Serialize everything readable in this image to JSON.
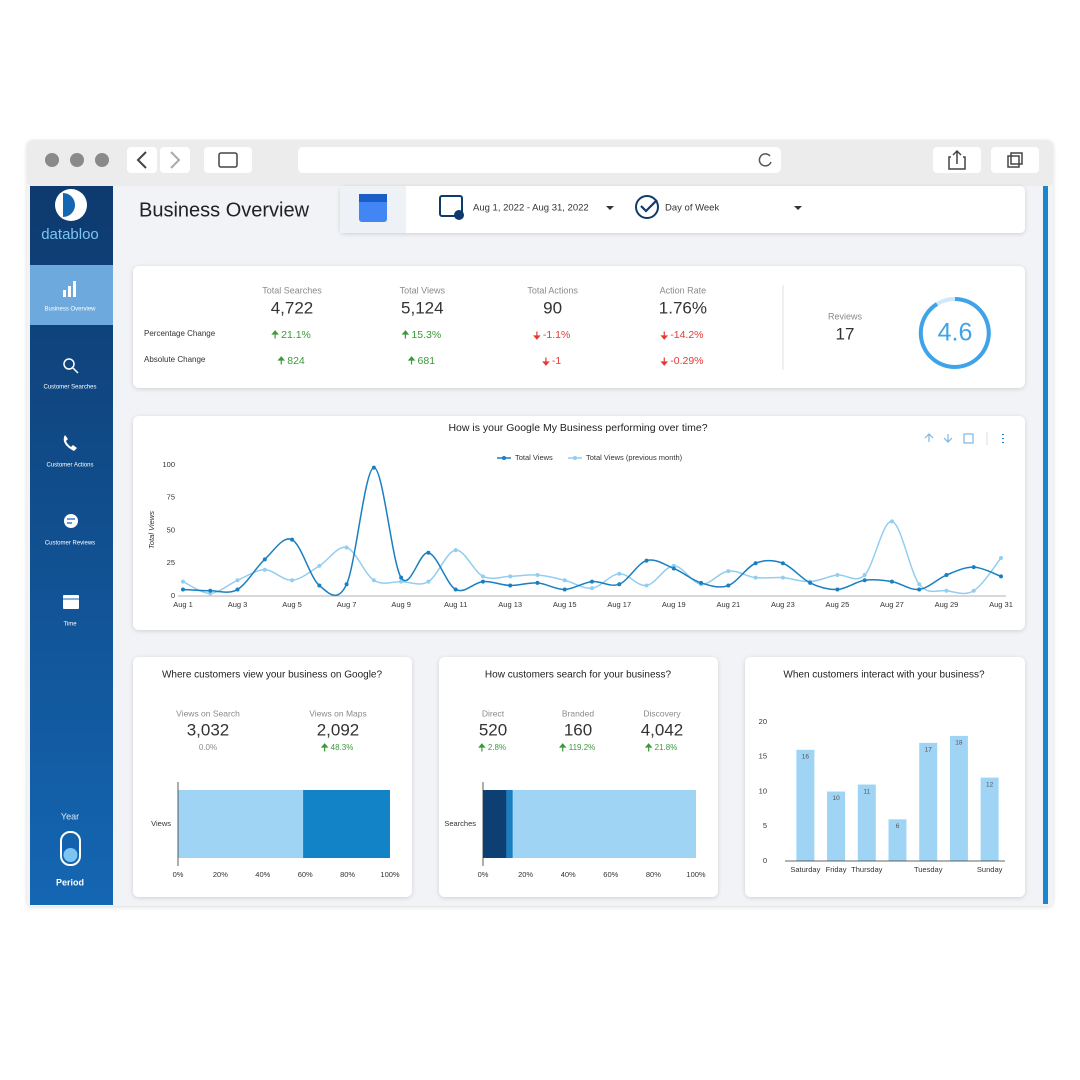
{
  "sidebar": {
    "brand": "databloo",
    "nav": [
      "Business Overview",
      "Customer Searches",
      "Customer Actions",
      "Customer Reviews",
      "Time"
    ],
    "toggle_top": "Year",
    "toggle_bottom": "Period"
  },
  "header": {
    "title": "Business Overview",
    "date_range": "Aug 1, 2022 - Aug 31, 2022",
    "dimension": "Day of Week"
  },
  "kpis": {
    "row_labels": [
      "Percentage Change",
      "Absolute Change"
    ],
    "metrics": [
      {
        "label": "Total Searches",
        "value": "4,722",
        "pct_change": "21.1%",
        "abs_change": "824",
        "direction": "up"
      },
      {
        "label": "Total Views",
        "value": "5,124",
        "pct_change": "15.3%",
        "abs_change": "681",
        "direction": "up"
      },
      {
        "label": "Total Actions",
        "value": "90",
        "pct_change": "-1.1%",
        "abs_change": "-1",
        "direction": "down"
      },
      {
        "label": "Action Rate",
        "value": "1.76%",
        "pct_change": "-14.2%",
        "abs_change": "-0.29%",
        "direction": "down"
      }
    ],
    "reviews_label": "Reviews",
    "reviews_value": "17",
    "rating": "4.6"
  },
  "chart_data": [
    {
      "type": "line",
      "title": "How is your Google My Business performing over time?",
      "ylabel": "Total Views",
      "categories": [
        "Aug 1",
        null,
        "Aug 3",
        null,
        "Aug 5",
        null,
        "Aug 7",
        null,
        "Aug 9",
        null,
        "Aug 11",
        null,
        "Aug 13",
        null,
        "Aug 15",
        null,
        "Aug 17",
        null,
        "Aug 19",
        null,
        "Aug 21",
        null,
        "Aug 23",
        null,
        "Aug 25",
        null,
        "Aug 27",
        null,
        "Aug 29",
        null,
        "Aug 31"
      ],
      "series": [
        {
          "name": "Total Views",
          "color": "#1a7fc1",
          "values": [
            5,
            4,
            5,
            28,
            43,
            8,
            9,
            98,
            14,
            33,
            5,
            11,
            8,
            10,
            5,
            11,
            9,
            27,
            21,
            10,
            8,
            25,
            25,
            10,
            5,
            12,
            11,
            5,
            16,
            22,
            15
          ]
        },
        {
          "name": "Total Views (previous month)",
          "color": "#93cdf0",
          "values": [
            11,
            2,
            12,
            20,
            12,
            23,
            37,
            12,
            11,
            11,
            35,
            15,
            15,
            16,
            12,
            6,
            17,
            8,
            23,
            9,
            19,
            14,
            14,
            11,
            16,
            16,
            57,
            9,
            4,
            4,
            29
          ]
        }
      ],
      "ylim": [
        0,
        100
      ],
      "yticks": [
        0,
        25,
        50,
        75,
        100
      ],
      "grid": false,
      "legend": "top"
    },
    {
      "type": "bar",
      "orientation": "horizontal",
      "stacked": true,
      "title": "Where customers view your business on Google?",
      "kpis": [
        {
          "label": "Views on Search",
          "value": "3,032",
          "change": "0.0%",
          "direction": null
        },
        {
          "label": "Views on Maps",
          "value": "2,092",
          "change": "48.3%",
          "direction": "up"
        }
      ],
      "categories": [
        "Views"
      ],
      "series": [
        {
          "color": "#9fd4f5",
          "values": [
            59
          ]
        },
        {
          "color": "#1283c6",
          "values": [
            41
          ]
        }
      ],
      "xlim": [
        0,
        100
      ],
      "xticks": [
        {
          "value": 0,
          "label": "0%"
        },
        {
          "value": 20,
          "label": "20%"
        },
        {
          "value": 40,
          "label": "40%"
        },
        {
          "value": 60,
          "label": "60%"
        },
        {
          "value": 80,
          "label": "80%"
        },
        {
          "value": 100,
          "label": "100%"
        }
      ]
    },
    {
      "type": "bar",
      "orientation": "horizontal",
      "stacked": true,
      "title": "How customers search for your business?",
      "kpis": [
        {
          "label": "Direct",
          "value": "520",
          "change": "2.8%",
          "direction": "up"
        },
        {
          "label": "Branded",
          "value": "160",
          "change": "119.2%",
          "direction": "up"
        },
        {
          "label": "Discovery",
          "value": "4,042",
          "change": "21.8%",
          "direction": "up"
        }
      ],
      "categories": [
        "Searches"
      ],
      "series": [
        {
          "color": "#0d3f73",
          "values": [
            11
          ]
        },
        {
          "color": "#1a7fc1",
          "values": [
            3
          ]
        },
        {
          "color": "#9fd4f5",
          "values": [
            86
          ]
        }
      ],
      "xlim": [
        0,
        100
      ],
      "xticks": [
        {
          "value": 0,
          "label": "0%"
        },
        {
          "value": 20,
          "label": "20%"
        },
        {
          "value": 40,
          "label": "40%"
        },
        {
          "value": 60,
          "label": "60%"
        },
        {
          "value": 80,
          "label": "80%"
        },
        {
          "value": 100,
          "label": "100%"
        }
      ]
    },
    {
      "type": "bar",
      "orientation": "vertical",
      "title": "When customers interact with your business?",
      "categories": [
        "Saturday",
        "Friday",
        "Thursday",
        null,
        "Tuesday",
        null,
        "Sunday"
      ],
      "values": [
        16,
        10,
        11,
        6,
        17,
        18,
        12
      ],
      "color": "#9fd4f5",
      "ylim": [
        0,
        20
      ],
      "yticks": [
        0,
        5,
        10,
        15,
        20
      ],
      "data_labels": true
    }
  ]
}
